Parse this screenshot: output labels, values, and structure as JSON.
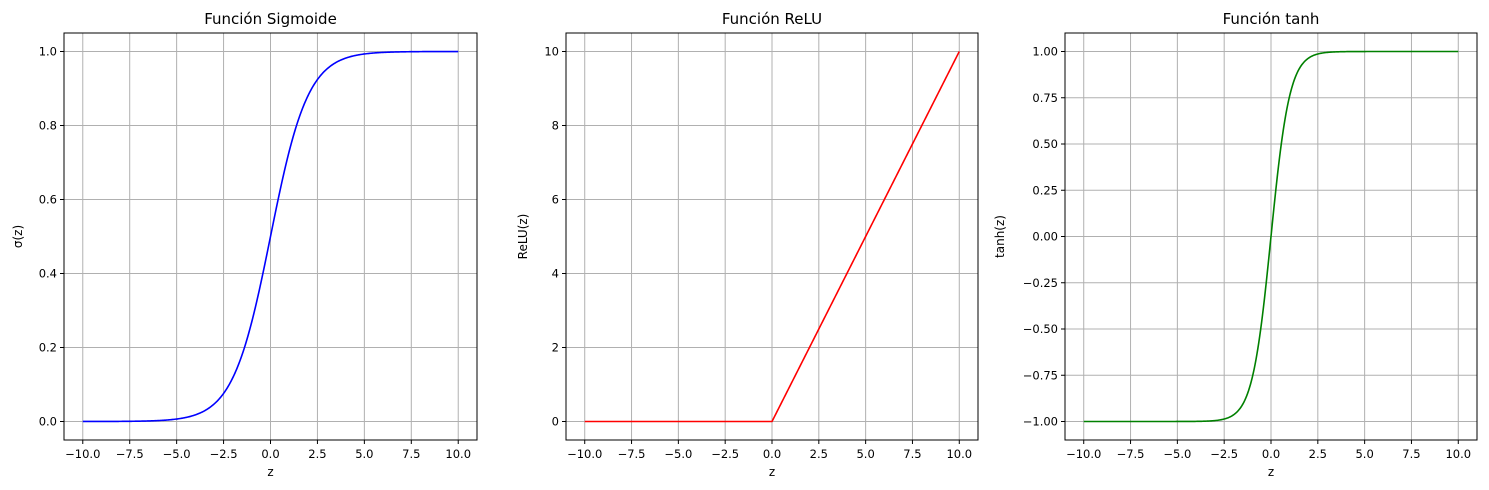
{
  "chart_data": [
    {
      "type": "line",
      "title": "Función Sigmoide",
      "xlabel": "z",
      "ylabel": "σ(z)",
      "function": "sigmoid",
      "xlim": [
        -11,
        11
      ],
      "ylim": [
        -0.05,
        1.05
      ],
      "xticks": [
        -10,
        -7.5,
        -5,
        -2.5,
        0,
        2.5,
        5,
        7.5,
        10
      ],
      "xtick_labels": [
        "−10.0",
        "−7.5",
        "−5.0",
        "−2.5",
        "0.0",
        "2.5",
        "5.0",
        "7.5",
        "10.0"
      ],
      "yticks": [
        0,
        0.2,
        0.4,
        0.6,
        0.8,
        1.0
      ],
      "ytick_labels": [
        "0.0",
        "0.2",
        "0.4",
        "0.6",
        "0.8",
        "1.0"
      ],
      "grid": true,
      "color": "#0000ff",
      "series": [
        {
          "x": [
            -10,
            -7.5,
            -5,
            -4,
            -3,
            -2.5,
            -2,
            -1.5,
            -1,
            -0.5,
            0,
            0.5,
            1,
            1.5,
            2,
            2.5,
            3,
            4,
            5,
            7.5,
            10
          ],
          "y": [
            4.54e-05,
            0.000553,
            0.00669,
            0.018,
            0.0474,
            0.0759,
            0.119,
            0.182,
            0.269,
            0.378,
            0.5,
            0.622,
            0.731,
            0.818,
            0.881,
            0.924,
            0.953,
            0.982,
            0.993,
            0.99945,
            0.99995
          ]
        }
      ]
    },
    {
      "type": "line",
      "title": "Función ReLU",
      "xlabel": "z",
      "ylabel": "ReLU(z)",
      "function": "relu",
      "xlim": [
        -11,
        11
      ],
      "ylim": [
        -0.5,
        10.5
      ],
      "xticks": [
        -10,
        -7.5,
        -5,
        -2.5,
        0,
        2.5,
        5,
        7.5,
        10
      ],
      "xtick_labels": [
        "−10.0",
        "−7.5",
        "−5.0",
        "−2.5",
        "0.0",
        "2.5",
        "5.0",
        "7.5",
        "10.0"
      ],
      "yticks": [
        0,
        2,
        4,
        6,
        8,
        10
      ],
      "ytick_labels": [
        "0",
        "2",
        "4",
        "6",
        "8",
        "10"
      ],
      "grid": true,
      "color": "#ff0000",
      "series": [
        {
          "x": [
            -10,
            0,
            10
          ],
          "y": [
            0,
            0,
            10
          ]
        }
      ]
    },
    {
      "type": "line",
      "title": "Función tanh",
      "xlabel": "z",
      "ylabel": "tanh(z)",
      "function": "tanh",
      "xlim": [
        -11,
        11
      ],
      "ylim": [
        -1.1,
        1.1
      ],
      "xticks": [
        -10,
        -7.5,
        -5,
        -2.5,
        0,
        2.5,
        5,
        7.5,
        10
      ],
      "xtick_labels": [
        "−10.0",
        "−7.5",
        "−5.0",
        "−2.5",
        "0.0",
        "2.5",
        "5.0",
        "7.5",
        "10.0"
      ],
      "yticks": [
        -1,
        -0.75,
        -0.5,
        -0.25,
        0,
        0.25,
        0.5,
        0.75,
        1
      ],
      "ytick_labels": [
        "−1.00",
        "−0.75",
        "−0.50",
        "−0.25",
        "0.00",
        "0.25",
        "0.50",
        "0.75",
        "1.00"
      ],
      "grid": true,
      "color": "#008000",
      "series": [
        {
          "x": [
            -10,
            -5,
            -3,
            -2.5,
            -2,
            -1.5,
            -1,
            -0.5,
            0,
            0.5,
            1,
            1.5,
            2,
            2.5,
            3,
            5,
            10
          ],
          "y": [
            -1,
            -0.9999,
            -0.995,
            -0.987,
            -0.964,
            -0.905,
            -0.762,
            -0.462,
            0,
            0.462,
            0.762,
            0.905,
            0.964,
            0.987,
            0.995,
            0.9999,
            1
          ]
        }
      ]
    }
  ]
}
